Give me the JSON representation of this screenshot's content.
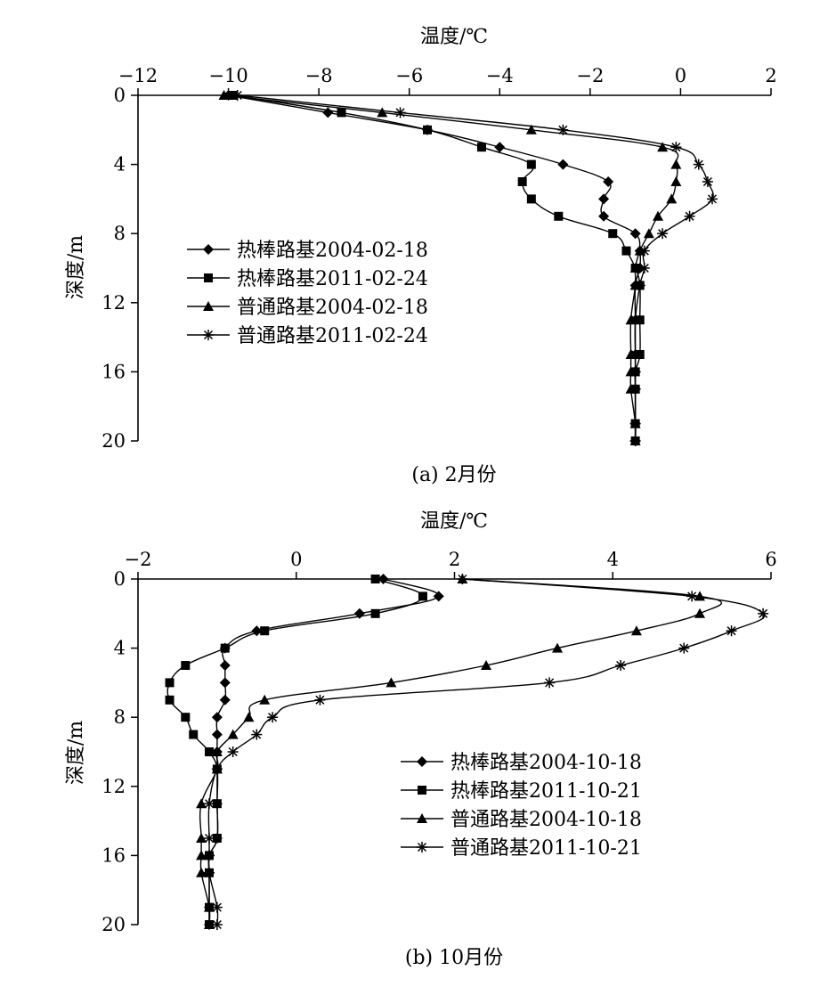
{
  "figure": {
    "panels": [
      {
        "id": "a",
        "caption": "(a)   2月份",
        "x_label": "温度/℃",
        "y_label": "深度/m"
      },
      {
        "id": "b",
        "caption": "(b)   10月份",
        "x_label": "温度/℃",
        "y_label": "深度/m"
      }
    ]
  },
  "chart_data": [
    {
      "type": "line",
      "title": "",
      "caption": "(a)   2月份",
      "xlabel": "温度/℃",
      "ylabel": "深度/m",
      "x_axis_position": "top",
      "y_axis_inverted": true,
      "xlim": [
        -12,
        2
      ],
      "ylim": [
        0,
        20
      ],
      "x_ticks": [
        -12,
        -10,
        -8,
        -6,
        -4,
        -2,
        0,
        2
      ],
      "y_ticks": [
        0,
        4,
        8,
        12,
        16,
        20
      ],
      "grid": false,
      "legend_position": "left-middle",
      "series": [
        {
          "name": "热棒路基2004-02-18",
          "marker": "diamond",
          "points": [
            [
              -10,
              0
            ],
            [
              -7.8,
              1
            ],
            [
              -5.6,
              2
            ],
            [
              -4.0,
              3
            ],
            [
              -2.6,
              4
            ],
            [
              -1.6,
              5
            ],
            [
              -1.7,
              6
            ],
            [
              -1.7,
              7
            ],
            [
              -1.0,
              8
            ],
            [
              -0.9,
              9
            ],
            [
              -0.9,
              10
            ],
            [
              -1.0,
              11
            ],
            [
              -1.0,
              13
            ],
            [
              -1.0,
              15
            ],
            [
              -1.0,
              16
            ],
            [
              -1.0,
              17
            ],
            [
              -1.0,
              19
            ],
            [
              -1.0,
              20
            ]
          ]
        },
        {
          "name": "热棒路基2011-02-24",
          "marker": "square",
          "points": [
            [
              -9.9,
              0
            ],
            [
              -7.5,
              1
            ],
            [
              -5.6,
              2
            ],
            [
              -4.4,
              3
            ],
            [
              -3.3,
              4
            ],
            [
              -3.5,
              5
            ],
            [
              -3.3,
              6
            ],
            [
              -2.7,
              7
            ],
            [
              -1.5,
              8
            ],
            [
              -1.2,
              9
            ],
            [
              -1.0,
              10
            ],
            [
              -0.9,
              11
            ],
            [
              -0.9,
              13
            ],
            [
              -0.9,
              15
            ],
            [
              -1.0,
              16
            ],
            [
              -1.0,
              17
            ],
            [
              -1.0,
              19
            ],
            [
              -1.0,
              20
            ]
          ]
        },
        {
          "name": "普通路基2004-02-18",
          "marker": "triangle",
          "points": [
            [
              -10.1,
              0
            ],
            [
              -6.6,
              1
            ],
            [
              -3.3,
              2
            ],
            [
              -0.4,
              3
            ],
            [
              -0.1,
              4
            ],
            [
              -0.1,
              5
            ],
            [
              -0.2,
              6
            ],
            [
              -0.5,
              7
            ],
            [
              -0.7,
              8
            ],
            [
              -0.9,
              9
            ],
            [
              -1.0,
              10
            ],
            [
              -1.0,
              11
            ],
            [
              -1.1,
              13
            ],
            [
              -1.1,
              15
            ],
            [
              -1.1,
              16
            ],
            [
              -1.1,
              17
            ],
            [
              -1.0,
              19
            ],
            [
              -1.0,
              20
            ]
          ]
        },
        {
          "name": "普通路基2011-02-24",
          "marker": "star",
          "points": [
            [
              -9.8,
              0
            ],
            [
              -6.2,
              1
            ],
            [
              -2.6,
              2
            ],
            [
              -0.1,
              3
            ],
            [
              0.4,
              4
            ],
            [
              0.6,
              5
            ],
            [
              0.7,
              6
            ],
            [
              0.2,
              7
            ],
            [
              -0.4,
              8
            ],
            [
              -0.8,
              9
            ],
            [
              -0.8,
              10
            ],
            [
              -0.9,
              11
            ],
            [
              -1.0,
              13
            ],
            [
              -1.0,
              15
            ],
            [
              -1.0,
              16
            ],
            [
              -1.0,
              17
            ],
            [
              -1.0,
              19
            ],
            [
              -1.0,
              20
            ]
          ]
        }
      ]
    },
    {
      "type": "line",
      "title": "",
      "caption": "(b)   10月份",
      "xlabel": "温度/℃",
      "ylabel": "深度/m",
      "x_axis_position": "top",
      "y_axis_inverted": true,
      "xlim": [
        -2,
        6
      ],
      "ylim": [
        0,
        20
      ],
      "x_ticks": [
        -2,
        0,
        2,
        4,
        6
      ],
      "y_ticks": [
        0,
        4,
        8,
        12,
        16,
        20
      ],
      "grid": false,
      "legend_position": "right-middle",
      "series": [
        {
          "name": "热棒路基2004-10-18",
          "marker": "diamond",
          "points": [
            [
              1.1,
              0
            ],
            [
              1.8,
              1
            ],
            [
              0.8,
              2
            ],
            [
              -0.5,
              3
            ],
            [
              -0.9,
              4
            ],
            [
              -0.9,
              5
            ],
            [
              -0.9,
              6
            ],
            [
              -0.9,
              7
            ],
            [
              -1.0,
              8
            ],
            [
              -1.0,
              9
            ],
            [
              -1.0,
              10
            ],
            [
              -1.0,
              11
            ],
            [
              -1.0,
              13
            ],
            [
              -1.0,
              15
            ],
            [
              -1.1,
              16
            ],
            [
              -1.1,
              17
            ],
            [
              -1.1,
              19
            ],
            [
              -1.1,
              20
            ]
          ]
        },
        {
          "name": "热棒路基2011-10-21",
          "marker": "square",
          "points": [
            [
              1.0,
              0
            ],
            [
              1.6,
              1
            ],
            [
              1.0,
              2
            ],
            [
              -0.4,
              3
            ],
            [
              -0.9,
              4
            ],
            [
              -1.4,
              5
            ],
            [
              -1.6,
              6
            ],
            [
              -1.6,
              7
            ],
            [
              -1.4,
              8
            ],
            [
              -1.3,
              9
            ],
            [
              -1.1,
              10
            ],
            [
              -1.0,
              11
            ],
            [
              -1.0,
              13
            ],
            [
              -1.0,
              15
            ],
            [
              -1.1,
              16
            ],
            [
              -1.1,
              17
            ],
            [
              -1.1,
              19
            ],
            [
              -1.1,
              20
            ]
          ]
        },
        {
          "name": "普通路基2004-10-18",
          "marker": "triangle",
          "points": [
            [
              2.1,
              0
            ],
            [
              5.1,
              1
            ],
            [
              5.1,
              2
            ],
            [
              4.3,
              3
            ],
            [
              3.3,
              4
            ],
            [
              2.4,
              5
            ],
            [
              1.2,
              6
            ],
            [
              -0.4,
              7
            ],
            [
              -0.6,
              8
            ],
            [
              -0.8,
              9
            ],
            [
              -1.0,
              10
            ],
            [
              -1.0,
              11
            ],
            [
              -1.2,
              13
            ],
            [
              -1.2,
              15
            ],
            [
              -1.2,
              16
            ],
            [
              -1.2,
              17
            ],
            [
              -1.1,
              19
            ],
            [
              -1.1,
              20
            ]
          ]
        },
        {
          "name": "普通路基2011-10-21",
          "marker": "star",
          "points": [
            [
              2.1,
              0
            ],
            [
              5.0,
              1
            ],
            [
              5.9,
              2
            ],
            [
              5.5,
              3
            ],
            [
              4.9,
              4
            ],
            [
              4.1,
              5
            ],
            [
              3.2,
              6
            ],
            [
              0.3,
              7
            ],
            [
              -0.3,
              8
            ],
            [
              -0.5,
              9
            ],
            [
              -0.8,
              10
            ],
            [
              -1.0,
              11
            ],
            [
              -1.1,
              13
            ],
            [
              -1.1,
              15
            ],
            [
              -1.1,
              16
            ],
            [
              -1.1,
              17
            ],
            [
              -1.0,
              19
            ],
            [
              -1.0,
              20
            ]
          ]
        }
      ]
    }
  ]
}
